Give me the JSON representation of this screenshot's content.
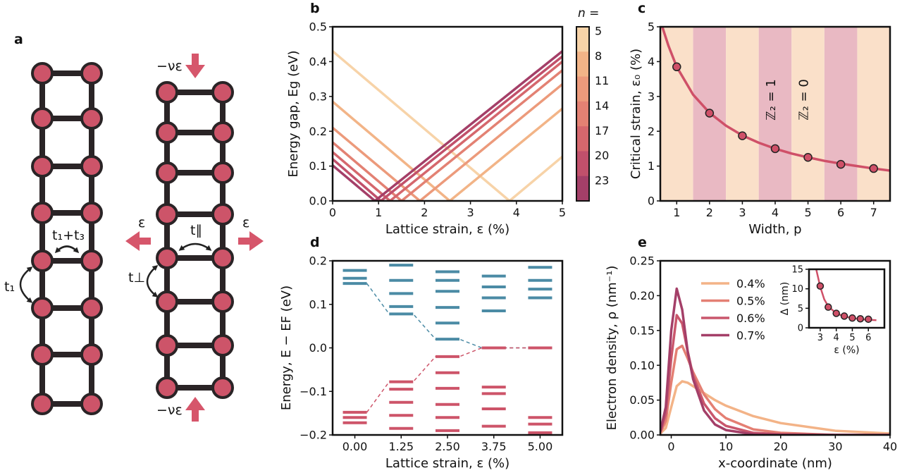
{
  "diagram": {
    "panel": "a",
    "labels": {
      "t13": "t₁+t₃",
      "t1": "t₁",
      "tpar": "t∥",
      "tperp": "t⊥",
      "eps": "ε",
      "nueps": "−νε"
    }
  },
  "chart_data": [
    {
      "panel": "b",
      "type": "line",
      "xlabel": "Lattice strain, ε (%)",
      "ylabel": "Energy gap, Eg (eV)",
      "xlim": [
        0,
        5
      ],
      "ylim": [
        0,
        0.5
      ],
      "xticks": [
        0,
        1,
        2,
        3,
        4,
        5
      ],
      "yticks": [
        {
          "value": 0,
          "label": "0.0"
        },
        0.1,
        0.2,
        0.3,
        0.4,
        0.5
      ],
      "legend": "colorbar",
      "legend_title": "n =",
      "series": [
        {
          "name": "5",
          "color": "#f7d3a8",
          "x": [
            0,
            3.85,
            5
          ],
          "values": [
            0.43,
            0,
            0.127
          ]
        },
        {
          "name": "8",
          "color": "#f2b487",
          "x": [
            0,
            2.55,
            5
          ],
          "values": [
            0.285,
            0,
            0.265
          ]
        },
        {
          "name": "11",
          "color": "#ec9a7b",
          "x": [
            0,
            1.9,
            5
          ],
          "values": [
            0.21,
            0,
            0.335
          ]
        },
        {
          "name": "14",
          "color": "#e38173",
          "x": [
            0,
            1.5,
            5
          ],
          "values": [
            0.168,
            0,
            0.375
          ]
        },
        {
          "name": "17",
          "color": "#d5676d",
          "x": [
            0,
            1.25,
            5
          ],
          "values": [
            0.14,
            0,
            0.4
          ]
        },
        {
          "name": "20",
          "color": "#c1506b",
          "x": [
            0,
            1.05,
            5
          ],
          "values": [
            0.12,
            0,
            0.415
          ]
        },
        {
          "name": "23",
          "color": "#a43f68",
          "x": [
            0,
            0.92,
            5
          ],
          "values": [
            0.102,
            0,
            0.43
          ]
        }
      ]
    },
    {
      "panel": "c",
      "type": "scatter",
      "xlabel": "Width, p",
      "ylabel": "Critical strain, ε₀ (%)",
      "xlim": [
        0.5,
        7.5
      ],
      "ylim": [
        0,
        5
      ],
      "xticks": [
        1,
        2,
        3,
        4,
        5,
        6,
        7
      ],
      "yticks": [
        0,
        1,
        2,
        3,
        4,
        5
      ],
      "bands": [
        "#fae0c9",
        "#e9b9c3"
      ],
      "annotations": [
        "ℤ₂ = 1",
        "ℤ₂ = 0"
      ],
      "series": [
        {
          "style": "line",
          "color": "#cf5068",
          "x": [
            0.55,
            0.75,
            1,
            1.5,
            2,
            2.5,
            3,
            3.5,
            4,
            4.5,
            5,
            5.5,
            6,
            6.5,
            7,
            7.5
          ],
          "values": [
            5.03,
            4.45,
            3.85,
            3.05,
            2.53,
            2.16,
            1.88,
            1.67,
            1.5,
            1.36,
            1.25,
            1.15,
            1.07,
            1.0,
            0.93,
            0.87
          ]
        },
        {
          "style": "marker",
          "color": "#cf5068",
          "x": [
            1,
            2,
            3,
            4,
            5,
            6,
            7
          ],
          "values": [
            3.85,
            2.52,
            1.87,
            1.5,
            1.25,
            1.05,
            0.93
          ]
        }
      ]
    },
    {
      "panel": "d",
      "type": "level",
      "xlabel": "Lattice strain, ε (%)",
      "ylabel": "Energy, E − EF (eV)",
      "x": [
        0,
        1.25,
        2.5,
        3.75,
        5
      ],
      "xlim": [
        -0.6,
        5.6
      ],
      "ylim": [
        -0.2,
        0.2
      ],
      "xticks": [
        {
          "value": 0,
          "label": "0.00"
        },
        {
          "value": 1.25,
          "label": "1.25"
        },
        {
          "value": 2.5,
          "label": "2.50"
        },
        {
          "value": 3.75,
          "label": "3.75"
        },
        {
          "value": 5,
          "label": "5.00"
        }
      ],
      "yticks": [
        {
          "value": -0.2,
          "label": "−0.2"
        },
        {
          "value": -0.1,
          "label": "−0.1"
        },
        {
          "value": 0,
          "label": "0.0"
        },
        0.1,
        0.2
      ],
      "series": [
        {
          "color": "#4b8ba5",
          "values": [
            [
              0.148,
              0.16,
              0.178
            ],
            [
              0.078,
              0.095,
              0.125,
              0.155,
              0.19
            ],
            [
              0.02,
              0.057,
              0.093,
              0.13,
              0.155,
              0.175
            ],
            [
              0.0,
              0.085,
              0.115,
              0.14,
              0.165
            ],
            [
              0.0,
              0.115,
              0.135,
              0.155,
              0.185
            ]
          ]
        },
        {
          "color": "#cd5469",
          "values": [
            [
              -0.148,
              -0.16,
              -0.172
            ],
            [
              -0.078,
              -0.095,
              -0.125,
              -0.155,
              -0.185
            ],
            [
              -0.02,
              -0.057,
              -0.093,
              -0.13,
              -0.16,
              -0.19
            ],
            [
              0.0,
              -0.09,
              -0.105,
              -0.14,
              -0.18
            ],
            [
              0.0,
              -0.16,
              -0.175,
              -0.195
            ]
          ]
        }
      ]
    },
    {
      "panel": "e",
      "type": "line",
      "xlabel": "x-coordinate (nm)",
      "ylabel": "Electron density, ρ (nm⁻¹)",
      "xlim": [
        -2,
        40
      ],
      "ylim": [
        0,
        0.25
      ],
      "xticks": [
        0,
        10,
        20,
        30,
        40
      ],
      "yticks": [
        {
          "value": 0,
          "label": "0.00"
        },
        {
          "value": 0.05,
          "label": "0.05"
        },
        {
          "value": 0.1,
          "label": "0.10"
        },
        {
          "value": 0.15,
          "label": "0.15"
        },
        {
          "value": 0.2,
          "label": "0.20"
        },
        {
          "value": 0.25,
          "label": "0.25"
        }
      ],
      "legend": "upper center",
      "x": [
        -2,
        -1,
        0,
        1,
        2,
        3,
        4,
        6,
        8,
        10,
        15,
        20,
        30,
        40
      ],
      "series": [
        {
          "name": "0.4%",
          "color": "#f3b387",
          "values": [
            0.002,
            0.01,
            0.04,
            0.07,
            0.077,
            0.075,
            0.07,
            0.06,
            0.05,
            0.042,
            0.027,
            0.017,
            0.006,
            0.002
          ]
        },
        {
          "name": "0.5%",
          "color": "#e47f73",
          "values": [
            0.003,
            0.02,
            0.075,
            0.123,
            0.128,
            0.11,
            0.09,
            0.058,
            0.037,
            0.024,
            0.008,
            0.003,
            0,
            0
          ]
        },
        {
          "name": "0.6%",
          "color": "#c9566c",
          "values": [
            0.004,
            0.03,
            0.11,
            0.172,
            0.16,
            0.12,
            0.085,
            0.045,
            0.024,
            0.013,
            0.003,
            0.001,
            0,
            0
          ]
        },
        {
          "name": "0.7%",
          "color": "#a43f68",
          "values": [
            0.005,
            0.04,
            0.15,
            0.21,
            0.18,
            0.12,
            0.08,
            0.035,
            0.015,
            0.007,
            0.001,
            0,
            0,
            0
          ]
        }
      ],
      "inset": {
        "type": "scatter",
        "xlabel": "ε (%)",
        "ylabel": "Δ (nm)",
        "xlim": [
          2.3,
          7
        ],
        "ylim": [
          0,
          15
        ],
        "xticks": [
          3,
          4,
          5,
          6
        ],
        "yticks": [
          0,
          5,
          10,
          15
        ],
        "series": [
          {
            "style": "line",
            "color": "#cf5068",
            "x": [
              2.75,
              3,
              3.25,
              3.5,
              4,
              4.5,
              5,
              5.5,
              6,
              6.5
            ],
            "values": [
              15,
              10.5,
              7.3,
              5.5,
              3.7,
              2.9,
              2.5,
              2.2,
              2.05,
              1.95
            ]
          },
          {
            "style": "marker",
            "color": "#cf5068",
            "x": [
              3,
              3.5,
              4,
              4.5,
              5,
              5.5,
              6
            ],
            "values": [
              10.7,
              5.3,
              3.7,
              3.0,
              2.5,
              2.3,
              2.2
            ]
          }
        ]
      }
    }
  ]
}
